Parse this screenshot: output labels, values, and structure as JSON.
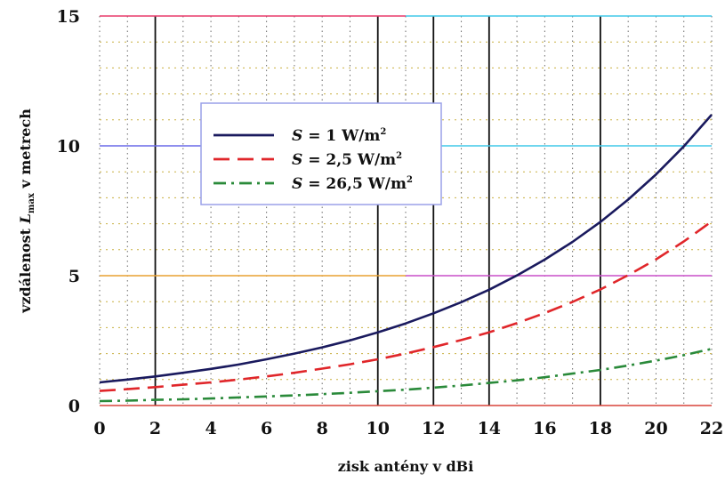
{
  "chart_data": {
    "type": "line",
    "xlabel": "zisk antény v dBi",
    "ylabel": "vzdálenost L v metrech",
    "ylabel_parts": {
      "before": "vzdálenost ",
      "var": "L",
      "sub": "max",
      "after": " v metrech"
    },
    "xlim": [
      0,
      22
    ],
    "ylim": [
      0,
      15
    ],
    "x_ticks": [
      0,
      2,
      4,
      6,
      8,
      10,
      12,
      14,
      16,
      18,
      20,
      22
    ],
    "y_ticks": [
      0,
      5,
      10,
      15
    ],
    "grid": true,
    "legend_position": "upper-center",
    "x": [
      0,
      1,
      2,
      3,
      4,
      5,
      6,
      7,
      8,
      9,
      10,
      11,
      12,
      13,
      14,
      15,
      16,
      17,
      18,
      19,
      20,
      21,
      22
    ],
    "series": [
      {
        "name": "S = 1 W/m²",
        "label": {
          "var": "S",
          "text": " = 1 W/m",
          "sup": "2"
        },
        "color": "#1a1a5e",
        "dash": "solid",
        "values": [
          0.89,
          1.0,
          1.12,
          1.26,
          1.41,
          1.58,
          1.78,
          2.0,
          2.24,
          2.51,
          2.82,
          3.16,
          3.55,
          3.98,
          4.46,
          5.01,
          5.62,
          6.3,
          7.07,
          7.93,
          8.9,
          9.98,
          11.2
        ]
      },
      {
        "name": "S = 2,5 W/m²",
        "label": {
          "var": "S",
          "text": " = 2,5 W/m",
          "sup": "2"
        },
        "color": "#e0262a",
        "dash": "long-dash",
        "values": [
          0.56,
          0.63,
          0.71,
          0.8,
          0.89,
          1.0,
          1.12,
          1.26,
          1.42,
          1.59,
          1.78,
          2.0,
          2.25,
          2.52,
          2.82,
          3.17,
          3.56,
          3.99,
          4.47,
          5.02,
          5.63,
          6.32,
          7.09
        ]
      },
      {
        "name": "S = 26,5 W/m²",
        "label": {
          "var": "S",
          "text": " = 26,5 W/m",
          "sup": "2"
        },
        "color": "#2a8a3a",
        "dash": "dash-dot",
        "values": [
          0.17,
          0.19,
          0.22,
          0.24,
          0.27,
          0.31,
          0.35,
          0.39,
          0.44,
          0.49,
          0.55,
          0.61,
          0.69,
          0.77,
          0.87,
          0.97,
          1.09,
          1.23,
          1.37,
          1.54,
          1.73,
          1.94,
          2.18
        ]
      }
    ]
  }
}
